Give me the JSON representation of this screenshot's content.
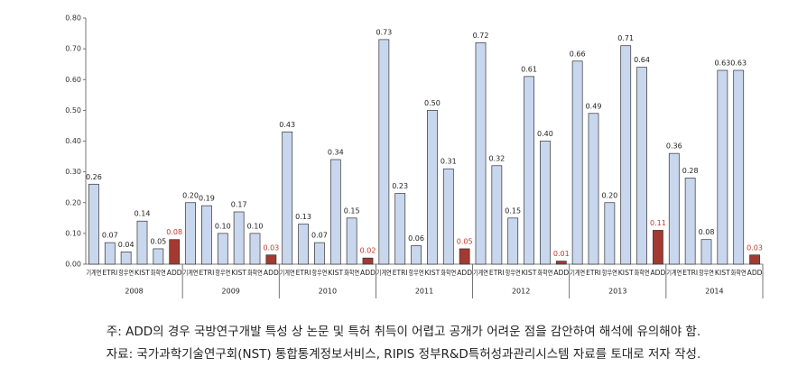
{
  "chart_data": {
    "type": "bar",
    "categories": [
      "2008",
      "2009",
      "2010",
      "2011",
      "2012",
      "2013",
      "2014"
    ],
    "series": [
      {
        "name": "기계연",
        "color": "#c9d7ee",
        "value_label_color": "#222222",
        "values": [
          0.26,
          0.2,
          0.43,
          0.73,
          0.72,
          0.66,
          0.36
        ],
        "value_labels": [
          "0.26",
          "0.20",
          "0.43",
          "0.73",
          "0.72",
          "0.66",
          "0.36"
        ]
      },
      {
        "name": "ETRI",
        "color": "#c9d7ee",
        "value_label_color": "#222222",
        "values": [
          0.07,
          0.19,
          0.13,
          0.23,
          0.32,
          0.49,
          0.28
        ],
        "value_labels": [
          "0.07",
          "0.19",
          "0.13",
          "0.23",
          "0.32",
          "0.49",
          "0.28"
        ]
      },
      {
        "name": "항우연",
        "color": "#c9d7ee",
        "value_label_color": "#222222",
        "values": [
          0.04,
          0.1,
          0.07,
          0.06,
          0.15,
          0.2,
          0.08
        ],
        "value_labels": [
          "0.04",
          "0.10",
          "0.07",
          "0.06",
          "0.15",
          "0.20",
          "0.08"
        ]
      },
      {
        "name": "KIST",
        "color": "#c9d7ee",
        "value_label_color": "#222222",
        "values": [
          0.14,
          0.17,
          0.34,
          0.5,
          0.61,
          0.71,
          0.63
        ],
        "value_labels": [
          "0.14",
          "0.17",
          "0.34",
          "0.50",
          "0.61",
          "0.71",
          "0.63"
        ]
      },
      {
        "name": "화학연",
        "color": "#c9d7ee",
        "value_label_color": "#222222",
        "values": [
          0.05,
          0.1,
          0.15,
          0.31,
          0.4,
          0.64,
          0.63
        ],
        "value_labels": [
          "0.05",
          "0.10",
          "0.15",
          "0.31",
          "0.40",
          "0.64",
          "0.63"
        ]
      },
      {
        "name": "ADD",
        "color": "#a33a32",
        "value_label_color": "#c0392b",
        "values": [
          0.08,
          0.03,
          0.02,
          0.05,
          0.01,
          0.11,
          0.03
        ],
        "value_labels": [
          "0.08",
          "0.03",
          "0.02",
          "0.05",
          "0.01",
          "0.11",
          "0.03"
        ]
      }
    ],
    "ylim": [
      0,
      0.8
    ],
    "yticks": [
      {
        "value": 0,
        "label": "0.00"
      },
      {
        "value": 0.1,
        "label": "0.10"
      },
      {
        "value": 0.2,
        "label": "0.20"
      },
      {
        "value": 0.3,
        "label": "0.30"
      },
      {
        "value": 0.4,
        "label": "0.40"
      },
      {
        "value": 0.5,
        "label": "0.50"
      },
      {
        "value": 0.6,
        "label": "0.60"
      },
      {
        "value": 0.7,
        "label": "0.70"
      },
      {
        "value": 0.8,
        "label": "0.80"
      }
    ],
    "notes": [
      "주: ADD의 경우 국방연구개발 특성 상 논문 및 특허 취득이 어렵고 공개가 어려운 점을 감안하여 해석에 유의해야 함.",
      "자료: 국가과학기술연구회(NST) 통합통계정보서비스, RIPIS 정부R&D특허성과관리시스템 자료를 토대로 저자 작성."
    ]
  }
}
